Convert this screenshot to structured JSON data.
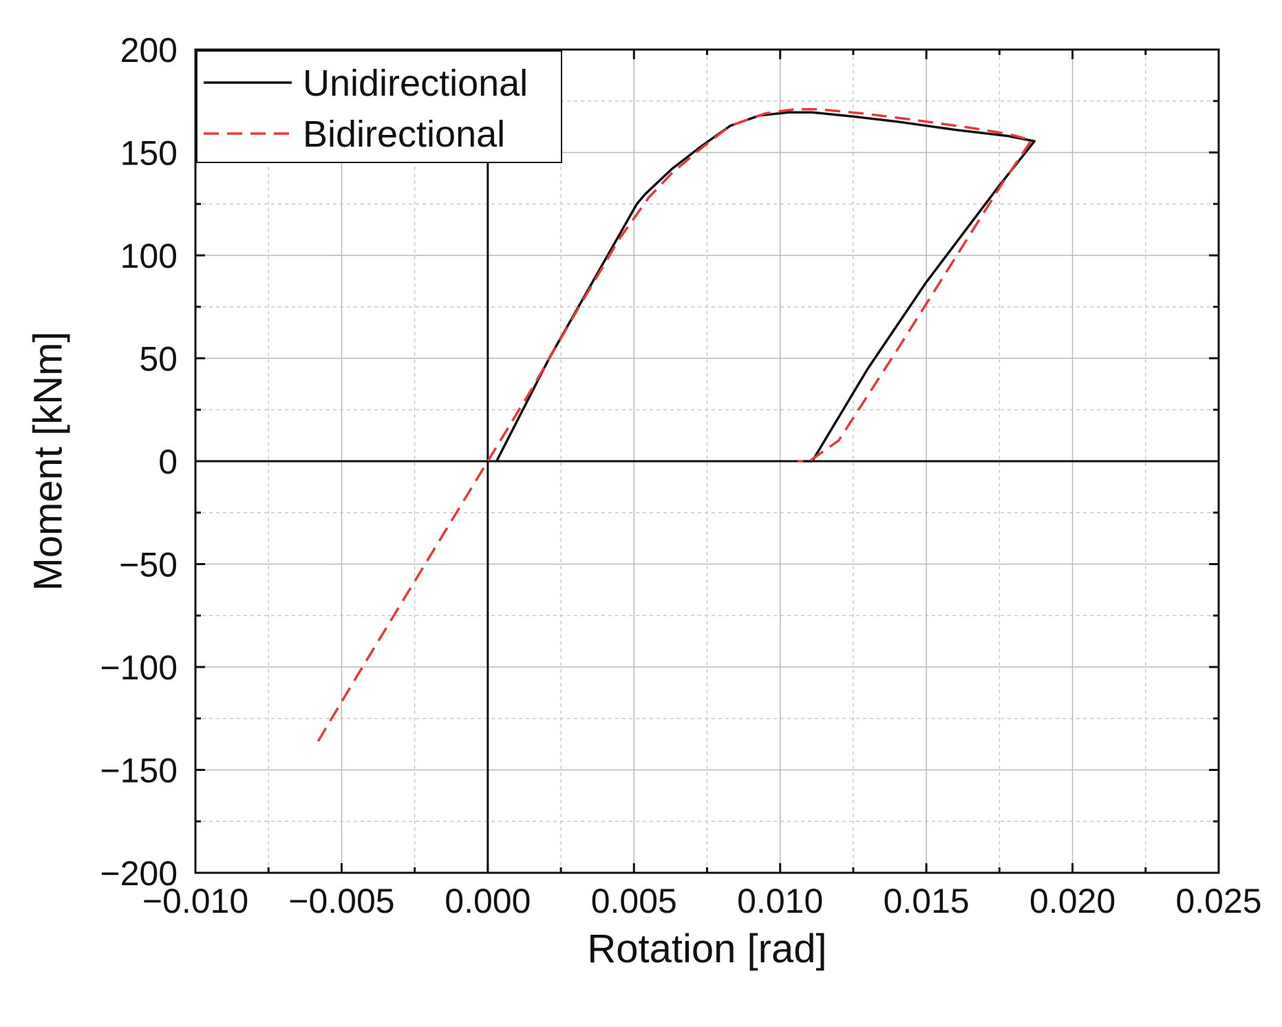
{
  "chart_data": {
    "type": "line",
    "xlabel": "Rotation [rad]",
    "ylabel": "Moment [kNm]",
    "xlim": [
      -0.01,
      0.025
    ],
    "ylim": [
      -200,
      200
    ],
    "x_ticks": [
      -0.01,
      -0.005,
      0.0,
      0.005,
      0.01,
      0.015,
      0.02,
      0.025
    ],
    "x_tick_labels": [
      "−0.010",
      "−0.005",
      "0.000",
      "0.005",
      "0.010",
      "0.015",
      "0.020",
      "0.025"
    ],
    "y_ticks": [
      200,
      150,
      100,
      50,
      0,
      -50,
      -100,
      -150,
      -200
    ],
    "y_tick_labels": [
      "200",
      "150",
      "100",
      "50",
      "0",
      "−50",
      "−100",
      "−150",
      "−200"
    ],
    "grid": true,
    "zero_lines": true,
    "legend_position": "top-left",
    "series": [
      {
        "name": "Unidirectional",
        "color": "#111111",
        "style": "solid",
        "x": [
          0.0003,
          0.0021,
          0.0051,
          0.0054,
          0.0063,
          0.0073,
          0.0083,
          0.0093,
          0.0103,
          0.0111,
          0.0125,
          0.014,
          0.016,
          0.0178,
          0.0187,
          0.0175,
          0.015,
          0.013,
          0.0111,
          0.0108
        ],
        "y": [
          0,
          50,
          125,
          130,
          142,
          153,
          163,
          168,
          169.5,
          169.5,
          167.5,
          165,
          161,
          158,
          155.5,
          134,
          87,
          45,
          0,
          0
        ]
      },
      {
        "name": "Bidirectional",
        "color": "#e8383a",
        "style": "dashed",
        "x": [
          -0.0058,
          -0.0045,
          -0.003,
          -0.0015,
          0.0,
          0.0015,
          0.003,
          0.0045,
          0.0055,
          0.0063,
          0.0073,
          0.0083,
          0.0095,
          0.0105,
          0.0113,
          0.0128,
          0.0145,
          0.0165,
          0.0178,
          0.0186,
          0.0176,
          0.016,
          0.014,
          0.012,
          0.011,
          0.0106
        ],
        "y": [
          -136,
          -105,
          -70,
          -35,
          0,
          35,
          72,
          108,
          128,
          140,
          152,
          163,
          169,
          171,
          171,
          169,
          166,
          162,
          159,
          156,
          135,
          99,
          54,
          10,
          0,
          0
        ]
      }
    ]
  }
}
